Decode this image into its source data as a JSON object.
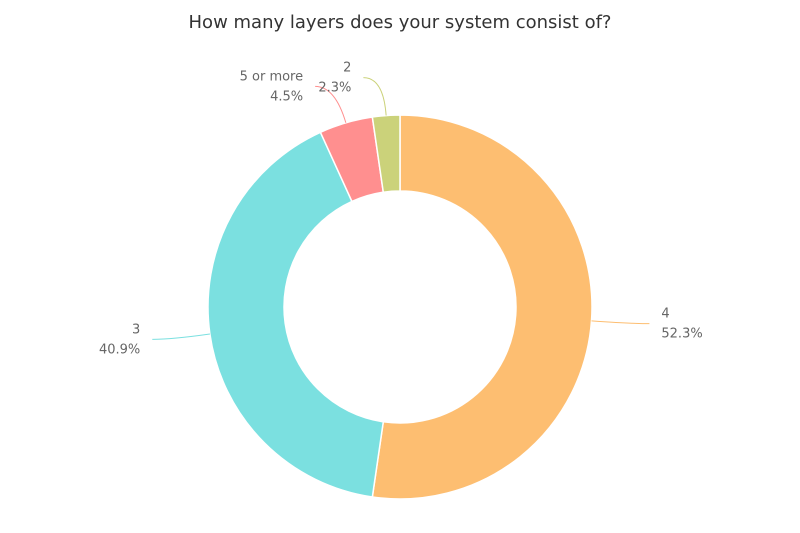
{
  "chart_data": {
    "type": "donut",
    "title": "How many layers does your system consist of?",
    "categories": [
      "4",
      "3",
      "5 or more",
      "2"
    ],
    "values": [
      52.3,
      40.9,
      4.5,
      2.3
    ],
    "value_labels": [
      "52.3%",
      "40.9%",
      "4.5%",
      "2.3%"
    ],
    "colors": [
      "#fdbe71",
      "#7be0e0",
      "#ff8f8f",
      "#cbd27a"
    ]
  }
}
